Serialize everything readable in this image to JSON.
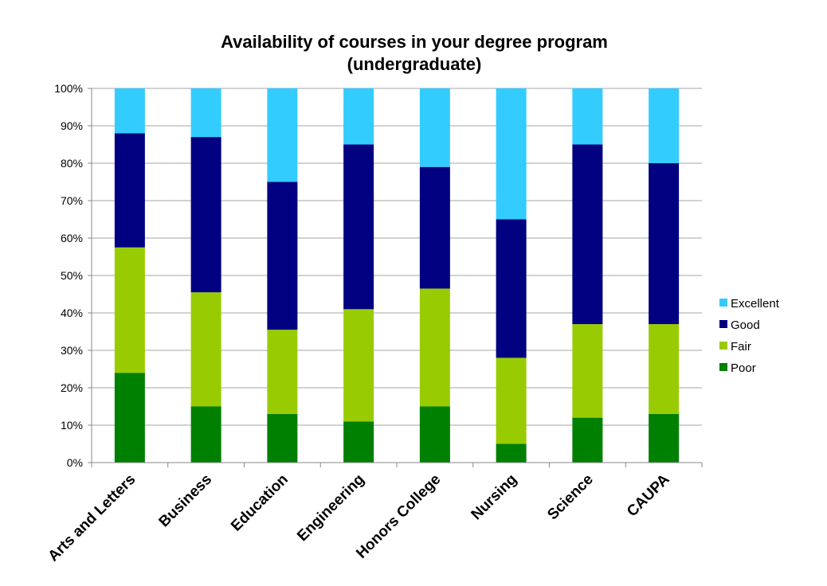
{
  "chart_data": {
    "type": "bar",
    "stacked": true,
    "title": "Availability of courses in your degree program",
    "subtitle": "(undergraduate)",
    "ylim": [
      0,
      100
    ],
    "yticks": [
      "0%",
      "10%",
      "20%",
      "30%",
      "40%",
      "50%",
      "60%",
      "70%",
      "80%",
      "90%",
      "100%"
    ],
    "grid": true,
    "legend_position": "right",
    "categories": [
      "Arts and Letters",
      "Business",
      "Education",
      "Engineering",
      "Honors College",
      "Nursing",
      "Science",
      "CAUPA"
    ],
    "series": [
      {
        "name": "Poor",
        "color": "#008000",
        "values": [
          24,
          15,
          13,
          11,
          15,
          5,
          12,
          13
        ]
      },
      {
        "name": "Fair",
        "color": "#99cc00",
        "values": [
          33.5,
          30.5,
          22.5,
          30,
          31.5,
          23,
          25,
          24
        ]
      },
      {
        "name": "Good",
        "color": "#000080",
        "values": [
          30.5,
          41.5,
          39.5,
          44,
          32.5,
          37,
          48,
          43
        ]
      },
      {
        "name": "Excellent",
        "color": "#33ccff",
        "values": [
          12,
          13,
          25,
          15,
          21,
          35,
          15,
          20
        ]
      }
    ],
    "legend_order": [
      "Excellent",
      "Good",
      "Fair",
      "Poor"
    ]
  }
}
